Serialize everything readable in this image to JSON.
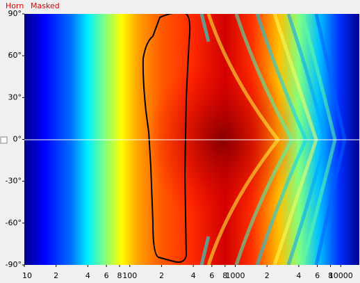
{
  "menu": [
    "Horn",
    "Masked"
  ],
  "chart_data": {
    "type": "heatmap",
    "xscale": "log",
    "xlim": [
      10,
      15000
    ],
    "xticks": [
      10,
      {
        "value": 20,
        "label": "2"
      },
      {
        "value": 40,
        "label": "4"
      },
      {
        "value": 60,
        "label": "6"
      },
      {
        "value": 80,
        "label": "8"
      },
      100,
      {
        "value": 200,
        "label": "2"
      },
      {
        "value": 400,
        "label": "4"
      },
      {
        "value": 600,
        "label": "6"
      },
      {
        "value": 800,
        "label": "8"
      },
      1000,
      {
        "value": 2000,
        "label": "2"
      },
      {
        "value": 4000,
        "label": "4"
      },
      {
        "value": 6000,
        "label": "6"
      },
      {
        "value": 8000,
        "label": "8"
      },
      10000
    ],
    "ylim": [
      -90,
      90
    ],
    "yticks": [
      {
        "value": 90,
        "label": "90°"
      },
      {
        "value": 60,
        "label": "60°"
      },
      {
        "value": 30,
        "label": "30°"
      },
      {
        "value": 0,
        "label": "0°"
      },
      {
        "value": -30,
        "label": "-30°"
      },
      {
        "value": -60,
        "label": "-60°"
      },
      {
        "value": -90,
        "label": "-90°"
      }
    ]
  }
}
